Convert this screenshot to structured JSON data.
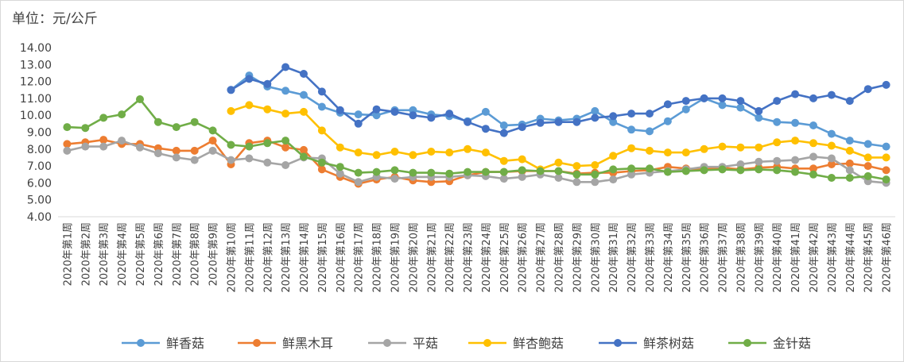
{
  "chart_data": {
    "type": "line",
    "unit_label": "单位：元/公斤",
    "ylim": [
      4.0,
      14.0
    ],
    "y_ticks": [
      "4.00",
      "5.00",
      "6.00",
      "7.00",
      "8.00",
      "9.00",
      "10.00",
      "11.00",
      "12.00",
      "13.00",
      "14.00"
    ],
    "grid": false,
    "legend_position": "bottom",
    "categories": [
      "2020年第1周",
      "2020年第2周",
      "2020年第3周",
      "2020年第4周",
      "2020年第5周",
      "2020年第6周",
      "2020年第7周",
      "2020年第8周",
      "2020年第9周",
      "2020年第10周",
      "2020年第11周",
      "2020年第12周",
      "2020年第13周",
      "2020年第14周",
      "2020年第15周",
      "2020年第16周",
      "2020年第17周",
      "2020年第18周",
      "2020年第19周",
      "2020年第20周",
      "2020年第21周",
      "2020年第22周",
      "2020年第23周",
      "2020年第24周",
      "2020年第25周",
      "2020年第26周",
      "2020年第27周",
      "2020年第28周",
      "2020年第29周",
      "2020年第30周",
      "2020年第31周",
      "2020年第32周",
      "2020年第33周",
      "2020年第34周",
      "2020年第35周",
      "2020年第36周",
      "2020年第37周",
      "2020年第38周",
      "2020年第39周",
      "2020年第40周",
      "2020年第41周",
      "2020年第42周",
      "2020年第43周",
      "2020年第44周",
      "2020年第45周",
      "2020年第46周"
    ],
    "series": [
      {
        "name": "鲜香菇",
        "color": "#5b9bd5",
        "values": [
          null,
          null,
          null,
          null,
          null,
          null,
          null,
          null,
          null,
          11.5,
          12.35,
          11.7,
          11.45,
          11.2,
          10.5,
          10.15,
          10.05,
          10.0,
          10.3,
          10.3,
          10.05,
          9.95,
          9.65,
          10.2,
          9.4,
          9.45,
          9.8,
          9.7,
          9.8,
          10.25,
          9.6,
          9.15,
          9.05,
          9.65,
          10.35,
          11.0,
          10.6,
          10.45,
          9.85,
          9.6,
          9.55,
          9.4,
          8.9,
          8.5,
          8.3,
          8.15
        ]
      },
      {
        "name": "鲜黑木耳",
        "color": "#ed7d31",
        "values": [
          8.3,
          8.4,
          8.55,
          8.3,
          8.3,
          8.05,
          7.9,
          7.9,
          8.5,
          7.1,
          8.35,
          8.5,
          8.1,
          7.95,
          6.8,
          6.35,
          5.95,
          6.2,
          6.35,
          6.15,
          6.05,
          6.1,
          6.45,
          6.65,
          6.65,
          6.7,
          6.7,
          6.7,
          6.55,
          6.6,
          6.6,
          6.7,
          6.75,
          6.95,
          6.85,
          6.8,
          6.9,
          6.8,
          6.9,
          6.95,
          6.85,
          6.85,
          7.1,
          7.15,
          7.0,
          6.75
        ]
      },
      {
        "name": "平菇",
        "color": "#a5a5a5",
        "values": [
          7.9,
          8.15,
          8.15,
          8.5,
          8.1,
          7.75,
          7.5,
          7.35,
          7.9,
          7.35,
          7.45,
          7.2,
          7.05,
          7.5,
          7.45,
          6.55,
          6.05,
          6.35,
          6.25,
          6.35,
          6.35,
          6.35,
          6.45,
          6.4,
          6.25,
          6.35,
          6.5,
          6.3,
          6.05,
          6.05,
          6.2,
          6.5,
          6.6,
          6.7,
          6.8,
          6.95,
          6.95,
          7.1,
          7.25,
          7.3,
          7.35,
          7.55,
          7.45,
          6.75,
          6.1,
          6.0
        ]
      },
      {
        "name": "鲜杏鲍菇",
        "color": "#ffc000",
        "values": [
          null,
          null,
          null,
          null,
          null,
          null,
          null,
          null,
          null,
          10.25,
          10.6,
          10.35,
          10.1,
          10.2,
          9.1,
          8.1,
          7.8,
          7.65,
          7.85,
          7.65,
          7.85,
          7.8,
          8.0,
          7.8,
          7.3,
          7.4,
          6.8,
          7.2,
          7.0,
          7.05,
          7.6,
          8.05,
          7.9,
          7.8,
          7.8,
          8.0,
          8.15,
          8.1,
          8.1,
          8.4,
          8.5,
          8.35,
          8.2,
          7.9,
          7.5,
          7.5
        ]
      },
      {
        "name": "鲜茶树菇",
        "color": "#4472c4",
        "values": [
          null,
          null,
          null,
          null,
          null,
          null,
          null,
          null,
          null,
          11.5,
          12.15,
          11.85,
          12.85,
          12.45,
          11.4,
          10.3,
          9.5,
          10.35,
          10.2,
          10.0,
          9.85,
          10.1,
          9.6,
          9.2,
          8.95,
          9.3,
          9.55,
          9.6,
          9.6,
          9.85,
          9.95,
          10.1,
          10.1,
          10.65,
          10.85,
          11.0,
          11.0,
          10.85,
          10.25,
          10.85,
          11.25,
          11.0,
          11.2,
          10.85,
          11.55,
          11.8
        ]
      },
      {
        "name": "金针菇",
        "color": "#70ad47",
        "values": [
          9.3,
          9.25,
          9.85,
          10.05,
          10.95,
          9.6,
          9.3,
          9.6,
          9.1,
          8.25,
          8.15,
          8.35,
          8.5,
          7.55,
          7.2,
          6.95,
          6.6,
          6.65,
          6.75,
          6.6,
          6.6,
          6.55,
          6.65,
          6.65,
          6.65,
          6.75,
          6.7,
          6.7,
          6.5,
          6.5,
          6.8,
          6.85,
          6.85,
          6.65,
          6.7,
          6.75,
          6.8,
          6.75,
          6.8,
          6.75,
          6.65,
          6.5,
          6.3,
          6.3,
          6.4,
          6.2
        ]
      }
    ]
  }
}
